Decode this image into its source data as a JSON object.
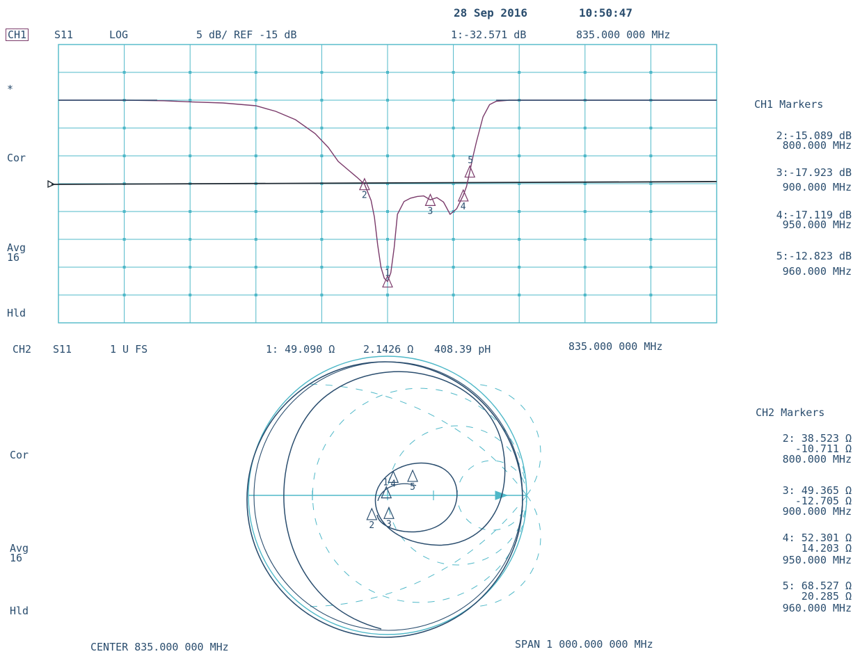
{
  "header": {
    "date": "28 Sep 2016",
    "time": "10:50:47"
  },
  "ch1": {
    "label": "CH1",
    "param": "S11",
    "format": "LOG",
    "scale_text": "5 dB/ REF -15 dB",
    "readout_marker": "1:-32.571 dB",
    "readout_freq": "835.000 000 MHz",
    "annot_star": "*",
    "annot_cor": "Cor",
    "annot_avg": "Avg",
    "annot_avg_n": "16",
    "annot_hld": "Hld",
    "markers_title": "CH1 Markers",
    "markers": [
      {
        "line1": "2:-15.089 dB",
        "line2": "800.000 MHz"
      },
      {
        "line1": "3:-17.923 dB",
        "line2": "900.000 MHz"
      },
      {
        "line1": "4:-17.119 dB",
        "line2": "950.000 MHz"
      },
      {
        "line1": "5:-12.823 dB",
        "line2": "960.000 MHz"
      }
    ]
  },
  "ch2": {
    "label": "CH2",
    "param": "S11",
    "format": "1 U FS",
    "readout_marker": "1: 49.090 Ω",
    "readout_x": "2.1426 Ω",
    "readout_l": "408.39 pH",
    "readout_freq": "835.000 000 MHz",
    "annot_cor": "Cor",
    "annot_avg": "Avg",
    "annot_avg_n": "16",
    "annot_hld": "Hld",
    "markers_title": "CH2 Markers",
    "markers": [
      {
        "line1": "2: 38.523 Ω",
        "line2": "-10.711 Ω",
        "line3": "800.000 MHz"
      },
      {
        "line1": "3: 49.365 Ω",
        "line2": "-12.705 Ω",
        "line3": "900.000 MHz"
      },
      {
        "line1": "4: 52.301 Ω",
        "line2": "14.203 Ω",
        "line3": "950.000 MHz"
      },
      {
        "line1": "5: 68.527 Ω",
        "line2": "20.285 Ω",
        "line3": "960.000 MHz"
      }
    ]
  },
  "footer": {
    "center": "CENTER 835.000 000 MHz",
    "span": "SPAN 1 000.000 000 MHz"
  },
  "colors": {
    "grid": "#4fb8c8",
    "trace": "#7a3a6a",
    "text": "#2a4d6e",
    "dark": "#2a4d6e"
  },
  "chart_data": [
    {
      "type": "line",
      "xlabel": "",
      "ylabel": "",
      "xlim": [
        335,
        1335
      ],
      "ylim": [
        -40,
        10
      ],
      "grid": true,
      "reference_level": -15,
      "series": [
        {
          "x": [
            335,
            435,
            495,
            535,
            585,
            635,
            665,
            695,
            725,
            745,
            760,
            775,
            790,
            800,
            810,
            815,
            820,
            825,
            830,
            835,
            840,
            845,
            850,
            860,
            870,
            880,
            890,
            900,
            910,
            920,
            930,
            940,
            950,
            955,
            960,
            965,
            970,
            980,
            990,
            1000,
            1020,
            1335
          ],
          "y": [
            0,
            0,
            -0.1,
            -0.3,
            -0.5,
            -1.0,
            -2.0,
            -3.5,
            -6.0,
            -8.5,
            -11.0,
            -12.5,
            -14.0,
            -15.1,
            -18.0,
            -21.0,
            -26.0,
            -30.0,
            -32.0,
            -32.57,
            -31.0,
            -26.5,
            -20.5,
            -18.2,
            -17.6,
            -17.3,
            -17.2,
            -17.9,
            -17.5,
            -18.3,
            -20.5,
            -19.5,
            -17.1,
            -15.5,
            -12.8,
            -10.0,
            -7.5,
            -3.0,
            -0.8,
            -0.2,
            0,
            0
          ]
        }
      ],
      "markers": [
        {
          "id": 1,
          "x": 835,
          "y": -32.571
        },
        {
          "id": 2,
          "x": 800,
          "y": -15.089
        },
        {
          "id": 3,
          "x": 900,
          "y": -17.923
        },
        {
          "id": 4,
          "x": 950,
          "y": -17.119
        },
        {
          "id": 5,
          "x": 960,
          "y": -12.823
        }
      ]
    },
    {
      "type": "smith",
      "full_scale": 1,
      "z0": 50,
      "impedance_points": [
        {
          "id": 1,
          "r": 49.09,
          "x": 2.1426
        },
        {
          "id": 2,
          "r": 38.523,
          "x": -10.711
        },
        {
          "id": 3,
          "r": 49.365,
          "x": -12.705
        },
        {
          "id": 4,
          "r": 52.301,
          "x": 14.203
        },
        {
          "id": 5,
          "r": 68.527,
          "x": 20.285
        }
      ]
    }
  ]
}
